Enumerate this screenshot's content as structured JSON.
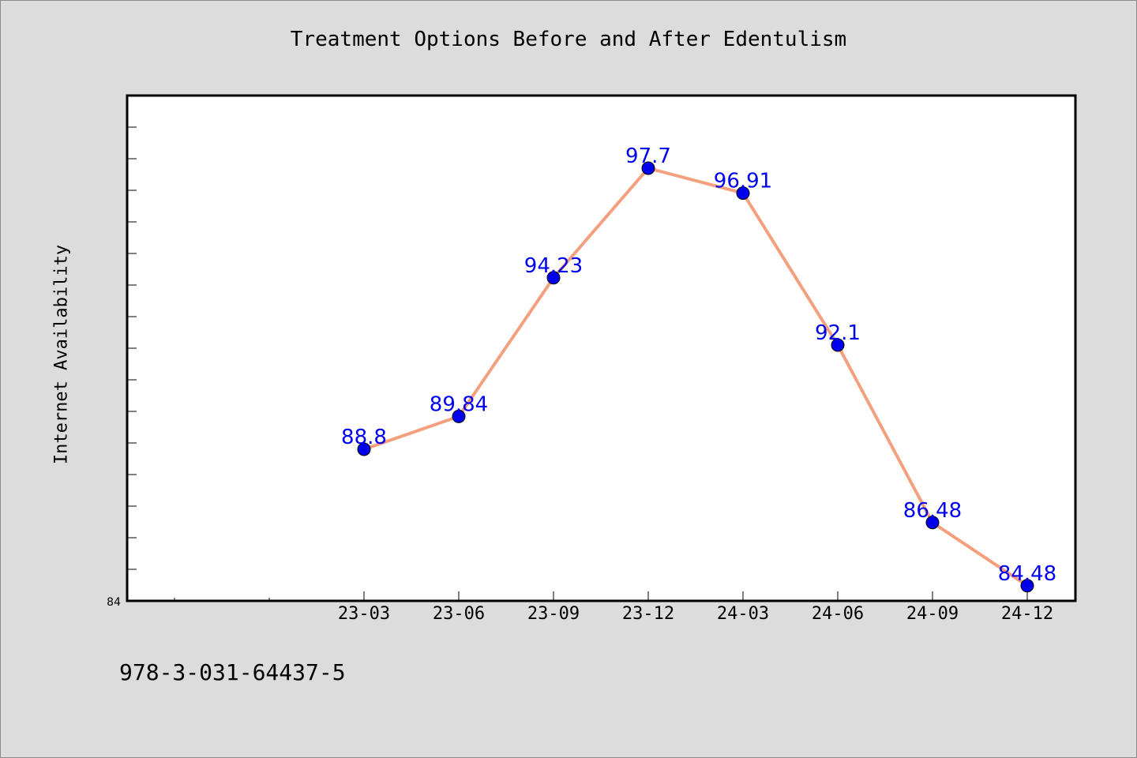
{
  "footnote": "978-3-031-64437-5",
  "chart_data": {
    "type": "line",
    "title": "Treatment Options Before and After Edentulism",
    "ylabel": "Internet Availability",
    "xlabel": "",
    "categories": [
      "23-03",
      "23-06",
      "23-09",
      "23-12",
      "24-03",
      "24-06",
      "24-09",
      "24-12"
    ],
    "series": [
      {
        "values": [
          88.8,
          89.84,
          94.23,
          97.7,
          96.91,
          92.1,
          86.48,
          84.48
        ]
      }
    ],
    "y_tick_labels": [
      "84"
    ],
    "ylim": [
      84,
      100
    ],
    "grid": false,
    "legend": "none",
    "colors": {
      "line": "#f4a07f",
      "marker": "#0000ee",
      "label": "#0000ee"
    }
  }
}
